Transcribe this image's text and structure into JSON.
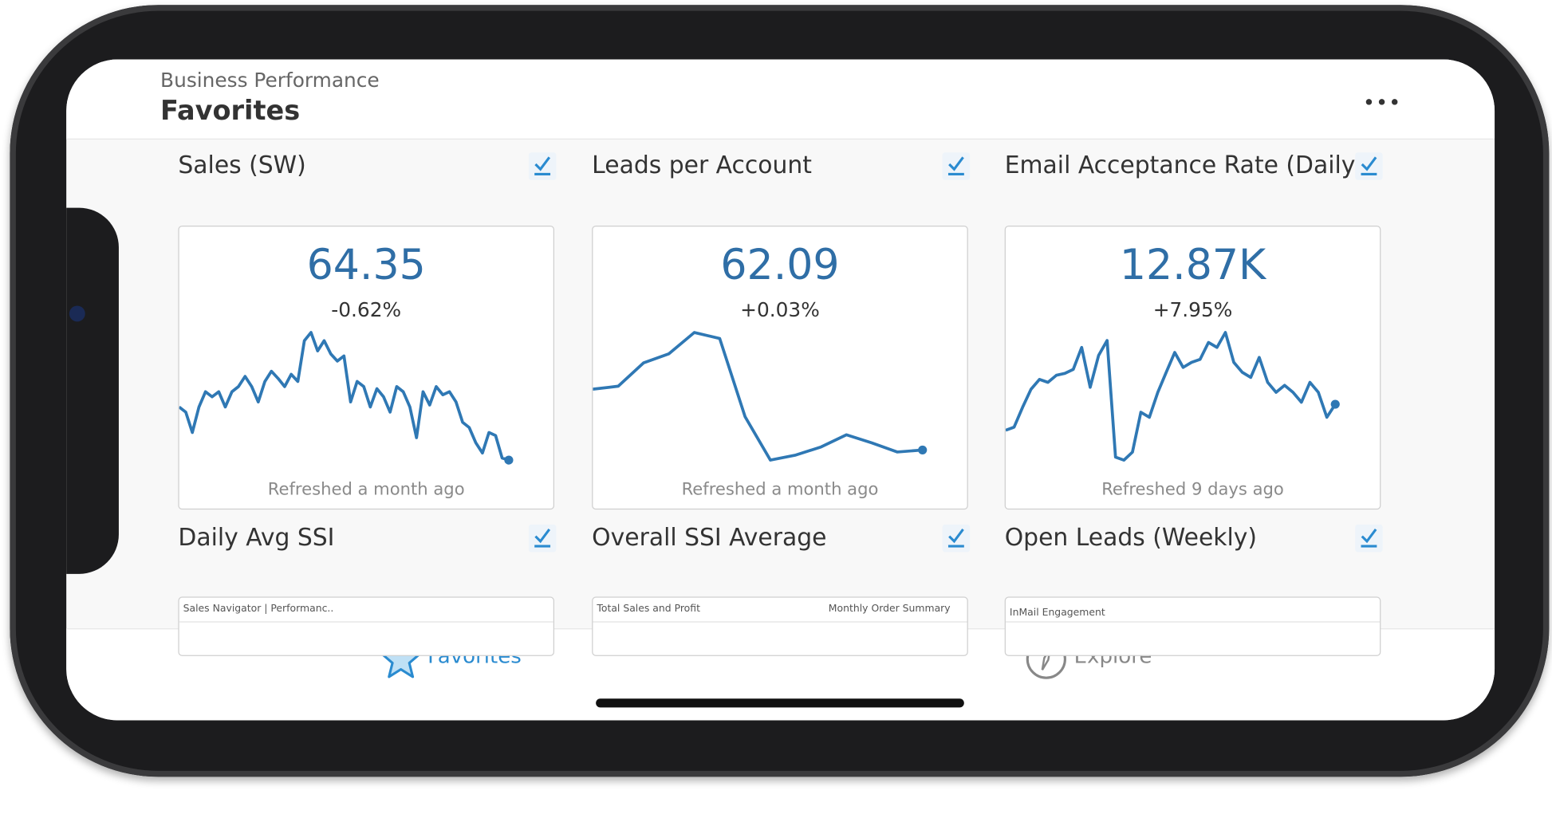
{
  "header": {
    "subtitle": "Business Performance",
    "title": "Favorites"
  },
  "cards": [
    {
      "title": "Sales (SW)",
      "value": "64.35",
      "change": "-0.62%",
      "refreshed": "Refreshed a month ago",
      "trend": [
        55,
        50,
        30,
        55,
        70,
        65,
        70,
        55,
        70,
        75,
        85,
        75,
        60,
        80,
        90,
        83,
        75,
        87,
        80,
        120,
        128,
        110,
        120,
        107,
        100,
        105,
        60,
        80,
        75,
        55,
        73,
        65,
        50,
        75,
        70,
        55,
        25,
        70,
        57,
        75,
        67,
        70,
        60,
        40,
        35,
        20,
        10,
        30,
        27,
        5,
        3
      ]
    },
    {
      "title": "Leads per Account",
      "value": "62.09",
      "change": "+0.03%",
      "refreshed": "Refreshed a month ago",
      "trend": [
        72,
        75,
        98,
        107,
        128,
        122,
        45,
        2,
        7,
        15,
        27,
        19,
        10,
        12
      ]
    },
    {
      "title": "Email Acceptance Rate (Daily)",
      "value": "12.87K",
      "change": "+7.95%",
      "refreshed": "Refreshed 9 days ago",
      "trend": [
        32,
        35,
        55,
        73,
        83,
        80,
        87,
        89,
        93,
        115,
        75,
        107,
        122,
        5,
        2,
        10,
        50,
        45,
        70,
        90,
        110,
        95,
        100,
        103,
        120,
        115,
        130,
        100,
        90,
        85,
        105,
        80,
        70,
        77,
        70,
        60,
        80,
        70,
        45,
        58
      ]
    }
  ],
  "thumbnails": [
    {
      "title": "Daily Avg SSI",
      "previews": [
        "Sales Navigator | Performanc.."
      ]
    },
    {
      "title": "Overall SSI Average",
      "previews": [
        "Total Sales and Profit",
        "Monthly Order Summary"
      ]
    },
    {
      "title": "Open Leads (Weekly)",
      "previews": [
        "InMail Engagement"
      ]
    }
  ],
  "tabs": [
    {
      "label": "Favorites",
      "active": true
    },
    {
      "label": "Explore",
      "active": false
    }
  ]
}
